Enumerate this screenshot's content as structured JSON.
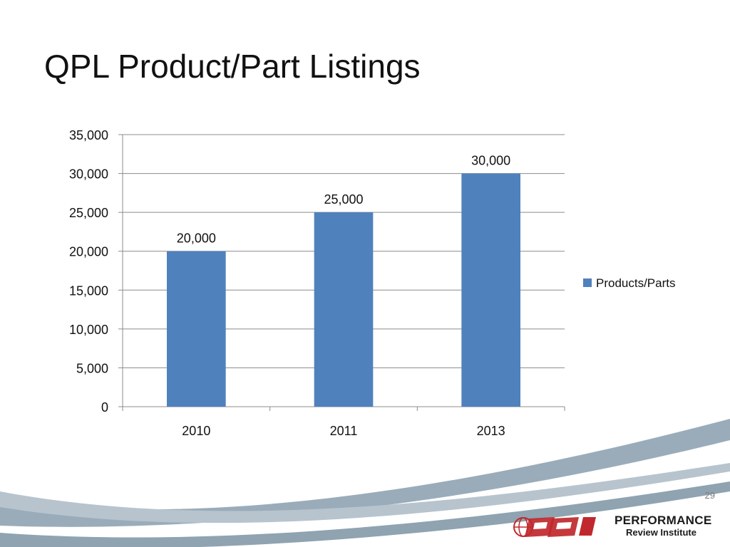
{
  "slide": {
    "title": "QPL Product/Part Listings",
    "page_number": "29",
    "logo": {
      "line1": "PERFORMANCE",
      "line2": "Review Institute",
      "icon": "pri-globe-logo-icon"
    }
  },
  "colors": {
    "bar": "#4f81bd",
    "gridline": "#8c8c8c",
    "swoosh": "#8fa3b1",
    "logo_red": "#c0282d"
  },
  "chart_data": {
    "type": "bar",
    "title": "",
    "xlabel": "",
    "ylabel": "",
    "categories": [
      "2010",
      "2011",
      "2013"
    ],
    "series": [
      {
        "name": "Products/Parts",
        "values": [
          20000,
          25000,
          30000
        ]
      }
    ],
    "data_labels": [
      "20,000",
      "25,000",
      "30,000"
    ],
    "y_ticks": [
      "0",
      "5,000",
      "10,000",
      "15,000",
      "20,000",
      "25,000",
      "30,000",
      "35,000"
    ],
    "ylim": [
      0,
      35000
    ],
    "y_step": 5000,
    "grid": true,
    "legend_position": "right"
  }
}
